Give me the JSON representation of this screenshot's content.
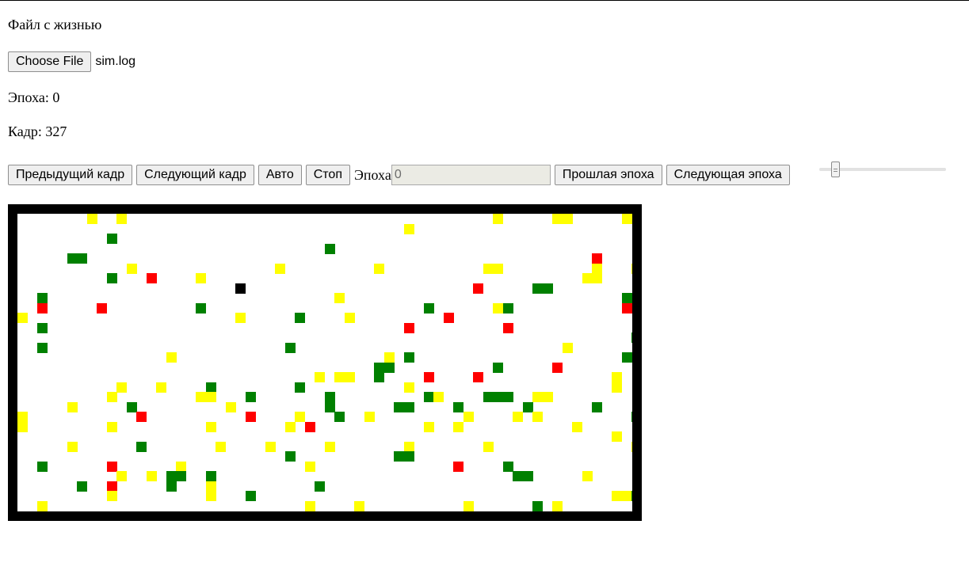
{
  "page": {
    "title": "Файл с жизнью",
    "file_button_label": "Choose File",
    "file_name": "sim.log",
    "epoch_text": "Эпоха: 0",
    "frame_text": "Кадр: 327"
  },
  "controls": {
    "prev_frame": "Предыдущий кадр",
    "next_frame": "Следующий кадр",
    "auto": "Авто",
    "stop": "Стоп",
    "epoch_label": "Эпоха",
    "epoch_value": "0",
    "prev_epoch": "Прошлая эпоха",
    "next_epoch": "Следующая эпоха",
    "slider_value_fraction": 0.1
  },
  "grid": {
    "cols": 62,
    "rows": 30,
    "colors": {
      "Y": "#ffff00",
      "G": "#008000",
      "R": "#ff0000",
      "B": "#000000"
    },
    "cells": [
      ".......Y..Y.....................................Y.....YY.....YYY.",
      ".......................................Y........................",
      ".........G......................................................",
      "...............................G................................",
      ".....GG...................................................R.....",
      "...........Y..............Y.........Y..........YY.........Y...Y.",
      ".........G...R....Y......................................YY....Y",
      "..............................................R.....GG..........",
      "..G.............................Y............................G..",
      "..R.....R.........G......................G......YG...........R.",
      "Y.....................Y.....G....Y.........R....................",
      "..G....................................R.........R..............",
      "..............................................................G.",
      "..G........................G...........................Y........",
      "...............Y.....................Y.G.....................G..",
      "....................................GG..........G.....R.........",
      "..............................Y.YY..G....R....R.............Y..",
      "..........Y...Y....G........G..........Y....................Y..Y",
      ".........Y........YY...G.......G.........GY....GGG..YY.........",
      ".....Y.....G.........Y.........G......GG....G......G......G....",
      "Y...........R..........R....Y...G..Y.........Y....Y.Y.........G",
      "Y........Y.........Y.......Y.R...........Y..Y...........Y.......",
      "............................................................Y..",
      ".....Y......G.......Y....Y.....Y.......Y.......Y..............Y.",
      "...........................G..........GG........................",
      "..G......R......Y............Y..............R....G..............",
      "..........Y..Y.GG..G..............................GG.....Y.......",
      "......G..R.....G...Y..........G.................................",
      ".........Y.........Y...G....................................YYG.",
      "..Y..........................Y....Y..........Y......G.Y.........G"
    ],
    "special": "none"
  }
}
